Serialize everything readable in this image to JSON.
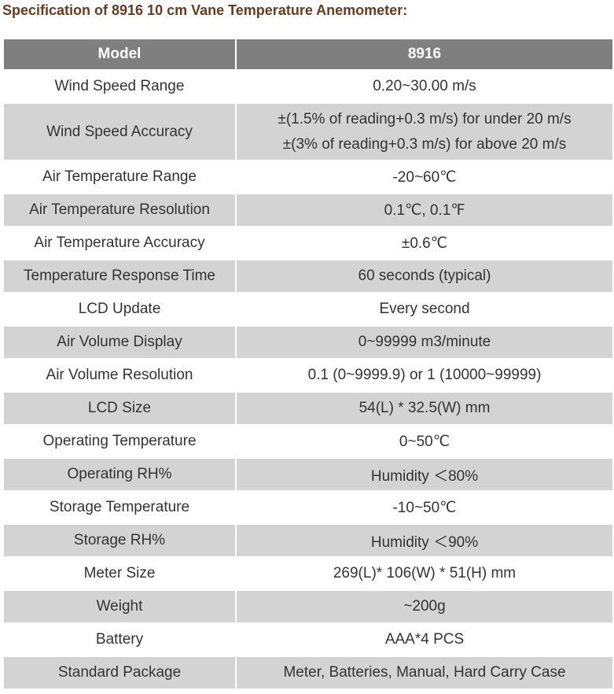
{
  "header": {
    "title": "Specification of 8916 10 cm Vane Temperature Anemometer:"
  },
  "table": {
    "columns": [
      "Model",
      "8916"
    ],
    "rows": [
      [
        "Wind Speed Range",
        "0.20~30.00 m/s"
      ],
      [
        "Wind Speed Accuracy",
        [
          "±(1.5% of reading+0.3 m/s) for under 20 m/s",
          "±(3% of reading+0.3 m/s) for above 20 m/s"
        ]
      ],
      [
        "Air Temperature Range",
        "-20~60℃"
      ],
      [
        "Air Temperature Resolution",
        "0.1℃, 0.1℉"
      ],
      [
        "Air Temperature Accuracy",
        "±0.6℃"
      ],
      [
        "Temperature Response Time",
        "60 seconds (typical)"
      ],
      [
        "LCD Update",
        "Every second"
      ],
      [
        "Air Volume Display",
        "0~99999 m3/minute"
      ],
      [
        "Air Volume Resolution",
        "0.1 (0~9999.9) or 1 (10000~99999)"
      ],
      [
        "LCD Size",
        "54(L) * 32.5(W) mm"
      ],
      [
        "Operating Temperature",
        "0~50℃"
      ],
      [
        "Operating RH%",
        "Humidity ＜80%"
      ],
      [
        "Storage Temperature",
        "-10~50℃"
      ],
      [
        "Storage RH%",
        "Humidity ＜90%"
      ],
      [
        "Meter Size",
        "269(L)* 106(W) * 51(H) mm"
      ],
      [
        "Weight",
        "~200g"
      ],
      [
        "Battery",
        "AAA*4 PCS"
      ],
      [
        "Standard Package",
        "Meter, Batteries, Manual, Hard Carry Case"
      ]
    ]
  }
}
